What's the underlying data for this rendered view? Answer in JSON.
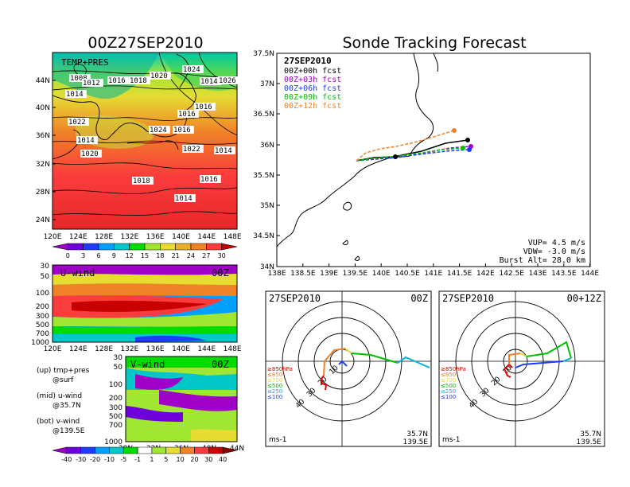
{
  "left_title": "00Z27SEP2010",
  "right_title": "Sonde Tracking Forecast",
  "top_map": {
    "label": "TEMP+PRES",
    "lat_ticks": [
      "44N",
      "40N",
      "36N",
      "32N",
      "28N",
      "24N"
    ],
    "lon_ticks": [
      "120E",
      "124E",
      "128E",
      "132E",
      "136E",
      "140E",
      "144E",
      "148E"
    ],
    "isobars": [
      {
        "text": "1008"
      },
      {
        "text": "1012"
      },
      {
        "text": "1014"
      },
      {
        "text": "1016"
      },
      {
        "text": "1018"
      },
      {
        "text": "1020"
      },
      {
        "text": "1024"
      },
      {
        "text": "1014"
      },
      {
        "text": "1026"
      },
      {
        "text": "1016"
      },
      {
        "text": "1022"
      },
      {
        "text": "1016"
      },
      {
        "text": "1024"
      },
      {
        "text": "1016"
      },
      {
        "text": "1014"
      },
      {
        "text": "1020"
      },
      {
        "text": "1022"
      },
      {
        "text": "1014"
      },
      {
        "text": "1018"
      },
      {
        "text": "1016"
      },
      {
        "text": "1014"
      }
    ],
    "colorbar": {
      "labels": [
        "0",
        "3",
        "6",
        "9",
        "12",
        "15",
        "18",
        "21",
        "24",
        "27",
        "30"
      ],
      "colors": [
        "#a000c8",
        "#6e00dc",
        "#1e3cff",
        "#00a0ff",
        "#00c8c8",
        "#00dc00",
        "#a0e632",
        "#e6dc32",
        "#e6af2d",
        "#f08228",
        "#fa3c3c",
        "#c80000"
      ]
    }
  },
  "uwind": {
    "label": "U-wind",
    "time": "00Z",
    "y_ticks": [
      "30",
      "50",
      "100",
      "200",
      "300",
      "500",
      "700",
      "1000"
    ],
    "x_ticks": [
      "120E",
      "124E",
      "128E",
      "132E",
      "136E",
      "140E",
      "144E",
      "148E"
    ]
  },
  "vwind": {
    "label": "V-wind",
    "time": "00Z",
    "y_ticks": [
      "30",
      "50",
      "100",
      "200",
      "300",
      "500",
      "700",
      "1000"
    ],
    "x_ticks": [
      "28N",
      "32N",
      "36N",
      "40N",
      "44N"
    ],
    "colorbar": {
      "labels": [
        "-40",
        "-30",
        "-20",
        "-10",
        "-5",
        "-1",
        "1",
        "5",
        "10",
        "20",
        "30",
        "40"
      ],
      "colors": [
        "#a000c8",
        "#6e00dc",
        "#1e3cff",
        "#00a0ff",
        "#00c8c8",
        "#00dc00",
        "#ffffff",
        "#a0e632",
        "#e6dc32",
        "#f08228",
        "#fa3c3c",
        "#c80000",
        "#8c0000"
      ]
    }
  },
  "legend_notes": [
    {
      "a": "(up) tmp+pres",
      "b": "@surf"
    },
    {
      "a": "(mid) u-wind",
      "b": "@35.7N"
    },
    {
      "a": "(bot) v-wind",
      "b": "@139.5E"
    }
  ],
  "track_map": {
    "date": "27SEP2010",
    "lat_ticks": [
      "37.5N",
      "37N",
      "36.5N",
      "36N",
      "35.5N",
      "35N",
      "34.5N",
      "34N"
    ],
    "lon_ticks": [
      "138E",
      "138.5E",
      "139E",
      "139.5E",
      "140E",
      "140.5E",
      "141E",
      "141.5E",
      "142E",
      "142.5E",
      "143E",
      "143.5E",
      "144E"
    ],
    "forecasts": [
      {
        "label": "00Z+00h fcst",
        "color": "#000000"
      },
      {
        "label": "00Z+03h fcst",
        "color": "#a000c8"
      },
      {
        "label": "00Z+06h fcst",
        "color": "#1e3cff"
      },
      {
        "label": "00Z+09h fcst",
        "color": "#00c000"
      },
      {
        "label": "00Z+12h fcst",
        "color": "#f08228"
      }
    ],
    "vup": "VUP=  4.5  m/s",
    "vdw": "VDW= -3.0  m/s",
    "burst": "Burst Alt=  28.0  km"
  },
  "hodo_left": {
    "date": "27SEP2010",
    "time": "00Z",
    "lat": "35.7N",
    "lon": "139.5E",
    "unit": "ms-1",
    "ring_labels": [
      "10",
      "20",
      "30",
      "40"
    ],
    "levels": [
      {
        "label": "≥850hPa",
        "color": "#e60000"
      },
      {
        "label": "≤850",
        "color": "#f08228"
      },
      {
        "label": "≤700",
        "color": "#e6dc32"
      },
      {
        "label": "≤500",
        "color": "#00c000"
      },
      {
        "label": "≤250",
        "color": "#00b4dc"
      },
      {
        "label": "≤100",
        "color": "#1e3cff"
      }
    ]
  },
  "hodo_right": {
    "date": "27SEP2010",
    "time": "00+12Z",
    "lat": "35.7N",
    "lon": "139.5E",
    "unit": "ms-1",
    "ring_labels": [
      "10",
      "20",
      "30",
      "40"
    ],
    "levels": [
      {
        "label": "≥850hPa",
        "color": "#e60000"
      },
      {
        "label": "≤850",
        "color": "#f08228"
      },
      {
        "label": "≤700",
        "color": "#e6dc32"
      },
      {
        "label": "≤500",
        "color": "#00c000"
      },
      {
        "label": "≤250",
        "color": "#00b4dc"
      },
      {
        "label": "≤100",
        "color": "#1e3cff"
      }
    ]
  }
}
